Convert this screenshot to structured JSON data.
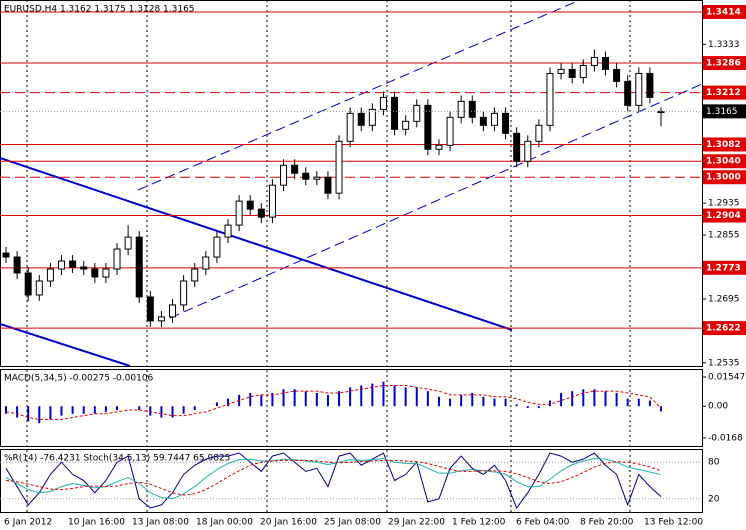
{
  "chart_data": {
    "type": "candlestick",
    "title": "EURUSD,H4  1.3162 1.3175 1.3128 1.3165",
    "open": [
      1.281,
      1.28,
      1.276,
      1.2705,
      1.274,
      1.277,
      1.279,
      1.2775,
      1.277,
      1.275,
      1.277,
      1.282,
      1.285,
      1.27,
      1.264,
      1.265,
      1.268,
      1.274,
      1.277,
      1.28,
      1.285,
      1.288,
      1.294,
      1.292,
      1.29,
      1.298,
      1.303,
      1.301,
      1.2995,
      1.3,
      1.296,
      1.309,
      1.316,
      1.313,
      1.317,
      1.32,
      1.312,
      1.314,
      1.318,
      1.307,
      1.308,
      1.315,
      1.319,
      1.315,
      1.313,
      1.316,
      1.311,
      1.304,
      1.309,
      1.313,
      1.326,
      1.327,
      1.325,
      1.328,
      1.33,
      1.327,
      1.324,
      1.318,
      1.326,
      1.3162
    ],
    "high": [
      1.2825,
      1.2815,
      1.2775,
      1.2755,
      1.2785,
      1.2805,
      1.2805,
      1.279,
      1.2785,
      1.2785,
      1.2835,
      1.288,
      1.2865,
      1.2715,
      1.2665,
      1.2695,
      1.2755,
      1.2785,
      1.2815,
      1.2865,
      1.2895,
      1.2955,
      1.2955,
      1.2935,
      1.2995,
      1.3045,
      1.3045,
      1.3025,
      1.3015,
      1.3015,
      1.3105,
      1.3175,
      1.3175,
      1.3185,
      1.3215,
      1.3215,
      1.3155,
      1.3195,
      1.3195,
      1.3095,
      1.3165,
      1.3205,
      1.3205,
      1.3165,
      1.3175,
      1.3175,
      1.3125,
      1.3105,
      1.3145,
      1.3275,
      1.3285,
      1.3285,
      1.3295,
      1.332,
      1.3315,
      1.3285,
      1.3255,
      1.3275,
      1.3275,
      1.3175
    ],
    "low": [
      1.2785,
      1.2745,
      1.269,
      1.269,
      1.2725,
      1.2755,
      1.276,
      1.2755,
      1.2735,
      1.2735,
      1.2755,
      1.2805,
      1.2685,
      1.2625,
      1.2625,
      1.2635,
      1.2665,
      1.2725,
      1.2755,
      1.2785,
      1.2835,
      1.2865,
      1.2905,
      1.2885,
      1.2885,
      1.2965,
      1.2995,
      1.298,
      1.298,
      1.2945,
      1.2945,
      1.3075,
      1.3115,
      1.3115,
      1.3155,
      1.3105,
      1.3105,
      1.3125,
      1.3055,
      1.3055,
      1.3065,
      1.3135,
      1.3135,
      1.3115,
      1.3115,
      1.3095,
      1.3025,
      1.3025,
      1.3075,
      1.3115,
      1.3245,
      1.3235,
      1.3235,
      1.3265,
      1.3255,
      1.3225,
      1.3165,
      1.3165,
      1.3185,
      1.3128
    ],
    "close": [
      1.28,
      1.276,
      1.2705,
      1.274,
      1.277,
      1.279,
      1.2775,
      1.277,
      1.275,
      1.277,
      1.282,
      1.285,
      1.27,
      1.264,
      1.265,
      1.268,
      1.274,
      1.277,
      1.28,
      1.285,
      1.288,
      1.294,
      1.292,
      1.29,
      1.298,
      1.303,
      1.301,
      1.2995,
      1.3,
      1.296,
      1.309,
      1.316,
      1.313,
      1.317,
      1.32,
      1.312,
      1.314,
      1.318,
      1.307,
      1.308,
      1.315,
      1.319,
      1.315,
      1.313,
      1.316,
      1.311,
      1.304,
      1.309,
      1.313,
      1.326,
      1.327,
      1.325,
      1.328,
      1.33,
      1.327,
      1.324,
      1.318,
      1.326,
      1.32,
      1.3165
    ],
    "ylim": [
      1.2527,
      1.3444
    ],
    "yticks": [
      1.3333,
      1.2935,
      1.2855,
      1.2695,
      1.2535
    ],
    "levels": [
      1.3414,
      1.3286,
      1.3082,
      {
        "value": 1.304,
        "label": "1.3040"
      },
      1.2904,
      1.2773,
      1.2622
    ],
    "dashed_levels": [
      1.3212,
      {
        "value": 1.3,
        "label": "1.3000"
      }
    ],
    "level_color": "#e00000",
    "last_price": 1.3165,
    "xlabels": [
      "6 Jan 2012",
      "10 Jan 16:00",
      "13 Jan 08:00",
      "18 Jan 00:00",
      "20 Jan 16:00",
      "25 Jan 08:00",
      "29 Jan 22:00",
      "1 Feb 12:00",
      "6 Feb 04:00",
      "8 Feb 20:00",
      "13 Feb 12:00"
    ],
    "macd": {
      "title": "MACD(5,34,5) -0.00275 -0.00106",
      "ylim": [
        -0.0211,
        0.0192
      ],
      "yticks": [
        0.01547,
        {
          "value": 0,
          "label": "0.00"
        },
        -0.0168
      ],
      "color": "#0000cc",
      "signal_color": "#e00000",
      "histogram": [
        -0.004,
        -0.006,
        -0.008,
        -0.009,
        -0.007,
        -0.005,
        -0.004,
        -0.004,
        -0.004,
        -0.003,
        -0.002,
        0.0,
        -0.002,
        -0.005,
        -0.006,
        -0.006,
        -0.004,
        -0.002,
        0.0,
        0.002,
        0.004,
        0.006,
        0.007,
        0.006,
        0.007,
        0.009,
        0.009,
        0.008,
        0.007,
        0.006,
        0.008,
        0.01,
        0.011,
        0.012,
        0.013,
        0.011,
        0.01,
        0.01,
        0.008,
        0.005,
        0.004,
        0.006,
        0.007,
        0.005,
        0.004,
        0.004,
        0.001,
        -0.001,
        -0.001,
        0.003,
        0.007,
        0.008,
        0.009,
        0.009,
        0.008,
        0.007,
        0.004,
        0.004,
        0.003,
        -0.00275
      ],
      "signal": [
        -0.003,
        -0.004,
        -0.006,
        -0.007,
        -0.007,
        -0.007,
        -0.006,
        -0.005,
        -0.004,
        -0.004,
        -0.003,
        -0.002,
        -0.002,
        -0.003,
        -0.004,
        -0.005,
        -0.005,
        -0.004,
        -0.003,
        -0.001,
        0.001,
        0.003,
        0.005,
        0.006,
        0.006,
        0.007,
        0.008,
        0.008,
        0.008,
        0.007,
        0.007,
        0.008,
        0.009,
        0.01,
        0.011,
        0.011,
        0.011,
        0.01,
        0.009,
        0.008,
        0.006,
        0.006,
        0.006,
        0.006,
        0.005,
        0.005,
        0.004,
        0.002,
        0.001,
        0.001,
        0.003,
        0.005,
        0.007,
        0.008,
        0.008,
        0.008,
        0.007,
        0.006,
        0.005,
        -0.00106
      ]
    },
    "oscillator": {
      "title": "%R(14) -76.4231  Stoch(34,5,13) 59.7447 65.9825",
      "ylim": [
        0,
        100
      ],
      "y2lim": [
        -100,
        0
      ],
      "yticks": [
        80,
        20
      ],
      "series": [
        {
          "color": "#00008b",
          "axis": "y2",
          "values": [
            -30,
            -60,
            -90,
            -70,
            -40,
            -20,
            -40,
            -50,
            -70,
            -50,
            -20,
            -10,
            -80,
            -95,
            -90,
            -70,
            -40,
            -25,
            -15,
            -10,
            -10,
            -5,
            -20,
            -35,
            -10,
            -5,
            -20,
            -35,
            -30,
            -60,
            -10,
            -5,
            -25,
            -15,
            -5,
            -50,
            -40,
            -20,
            -85,
            -80,
            -30,
            -10,
            -30,
            -40,
            -25,
            -50,
            -95,
            -70,
            -40,
            -5,
            -10,
            -20,
            -15,
            -5,
            -25,
            -40,
            -90,
            -40,
            -60,
            -76.4231
          ]
        },
        {
          "color": "#20b2aa",
          "values": [
            55,
            45,
            35,
            30,
            32,
            40,
            45,
            42,
            38,
            40,
            48,
            55,
            45,
            30,
            22,
            20,
            28,
            40,
            55,
            68,
            78,
            84,
            85,
            82,
            82,
            85,
            84,
            82,
            80,
            76,
            80,
            84,
            83,
            84,
            86,
            80,
            78,
            78,
            70,
            62,
            62,
            66,
            68,
            66,
            64,
            60,
            48,
            40,
            40,
            52,
            66,
            76,
            82,
            86,
            85,
            80,
            72,
            68,
            64,
            59.7447
          ]
        },
        {
          "color": "#e00000",
          "dashed": true,
          "values": [
            50,
            48,
            44,
            40,
            36,
            35,
            37,
            40,
            41,
            40,
            41,
            45,
            47,
            44,
            37,
            30,
            26,
            28,
            35,
            45,
            56,
            66,
            75,
            80,
            82,
            83,
            83,
            83,
            82,
            80,
            79,
            80,
            81,
            82,
            83,
            83,
            82,
            81,
            78,
            73,
            68,
            65,
            65,
            66,
            66,
            65,
            61,
            55,
            48,
            45,
            48,
            55,
            63,
            72,
            78,
            81,
            80,
            77,
            72,
            65.9825
          ]
        }
      ]
    }
  }
}
